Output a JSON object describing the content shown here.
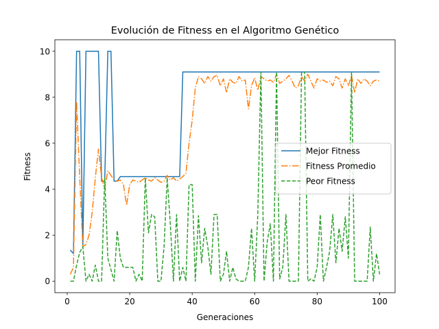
{
  "chart_data": {
    "type": "line",
    "title": "Evolución de Fitness en el Algoritmo Genético",
    "xlabel": "Generaciones",
    "ylabel": "Fitness",
    "xlim": [
      -3.95,
      104.95
    ],
    "ylim": [
      -0.5,
      10.5
    ],
    "xticks": [
      0,
      20,
      40,
      60,
      80,
      100
    ],
    "yticks": [
      0,
      2,
      4,
      6,
      8,
      10
    ],
    "grid": false,
    "legend_position": "center-right",
    "x": [
      1,
      2,
      3,
      4,
      5,
      6,
      7,
      8,
      9,
      10,
      11,
      12,
      13,
      14,
      15,
      16,
      17,
      18,
      19,
      20,
      21,
      22,
      23,
      24,
      25,
      26,
      27,
      28,
      29,
      30,
      31,
      32,
      33,
      34,
      35,
      36,
      37,
      38,
      39,
      40,
      41,
      42,
      43,
      44,
      45,
      46,
      47,
      48,
      49,
      50,
      51,
      52,
      53,
      54,
      55,
      56,
      57,
      58,
      59,
      60,
      61,
      62,
      63,
      64,
      65,
      66,
      67,
      68,
      69,
      70,
      71,
      72,
      73,
      74,
      75,
      76,
      77,
      78,
      79,
      80,
      81,
      82,
      83,
      84,
      85,
      86,
      87,
      88,
      89,
      90,
      91,
      92,
      93,
      94,
      95,
      96,
      97,
      98,
      99,
      100
    ],
    "series": [
      {
        "name": "Mejor Fitness",
        "color": "#1f77b4",
        "dash": "solid",
        "values": [
          1.35,
          1.2,
          10,
          10,
          1.5,
          10,
          10,
          10,
          10,
          10,
          4.35,
          4.35,
          10,
          10,
          4.35,
          4.35,
          4.55,
          4.55,
          4.55,
          4.55,
          4.55,
          4.55,
          4.55,
          4.55,
          4.55,
          4.55,
          4.55,
          4.55,
          4.55,
          4.55,
          4.55,
          4.55,
          4.55,
          4.55,
          4.55,
          4.55,
          9.1,
          9.1,
          9.1,
          9.1,
          9.1,
          9.1,
          9.1,
          9.1,
          9.1,
          9.1,
          9.1,
          9.1,
          9.1,
          9.1,
          9.1,
          9.1,
          9.1,
          9.1,
          9.1,
          9.1,
          9.1,
          9.1,
          9.1,
          9.1,
          9.1,
          9.1,
          9.1,
          9.1,
          9.1,
          9.1,
          9.1,
          9.1,
          9.1,
          9.1,
          9.1,
          9.1,
          9.1,
          9.1,
          9.1,
          9.1,
          9.1,
          9.1,
          9.1,
          9.1,
          9.1,
          9.1,
          9.1,
          9.1,
          9.1,
          9.1,
          9.1,
          9.1,
          9.1,
          9.1,
          9.1,
          9.1,
          9.1,
          9.1,
          9.1,
          9.1,
          9.1,
          9.1,
          9.1,
          9.1
        ]
      },
      {
        "name": "Fitness Promedio",
        "color": "#ff7f0e",
        "dash": "dashdot",
        "values": [
          0.3,
          0.6,
          7.8,
          4.5,
          1.5,
          1.6,
          2,
          3,
          4.5,
          5.75,
          4.5,
          4,
          4.8,
          4.6,
          4.4,
          4.35,
          4.4,
          4.2,
          3.3,
          4.2,
          4.4,
          4.35,
          4.3,
          4.4,
          4.5,
          4.4,
          4.35,
          4.5,
          4.4,
          4.3,
          4.35,
          4.6,
          4.4,
          4.5,
          4.35,
          4.45,
          4.55,
          4.7,
          6,
          7,
          8.4,
          8.9,
          8.8,
          8.6,
          8.9,
          8.7,
          8.9,
          8.95,
          8.5,
          8.8,
          8.2,
          8.8,
          8.65,
          8.6,
          8.9,
          8.7,
          8.75,
          7.5,
          8.5,
          8.85,
          8.3,
          8.9,
          8.8,
          8.7,
          8.75,
          8.65,
          9,
          8.6,
          8.7,
          8.8,
          8.95,
          8.7,
          8.4,
          8.5,
          8.9,
          8.7,
          9,
          8.7,
          8.4,
          8.8,
          8.7,
          8.75,
          8.65,
          8.7,
          8.5,
          8.9,
          8.8,
          8.4,
          8.8,
          8.5,
          8.95,
          8.2,
          8.8,
          8.6,
          8.8,
          8.7,
          8.5,
          8.7,
          8.75,
          8.7
        ]
      },
      {
        "name": "Peor Fitness",
        "color": "#2ca02c",
        "dash": "dashed",
        "values": [
          0,
          0,
          0.7,
          1.25,
          1.5,
          0,
          0.3,
          0,
          0.7,
          0,
          0,
          4.5,
          1,
          0.5,
          0,
          2.2,
          1,
          0.6,
          0.6,
          0.6,
          0.6,
          0,
          0.3,
          0,
          4.5,
          2.1,
          2.9,
          2.8,
          0,
          0,
          1.5,
          4.5,
          2.5,
          0,
          2.9,
          0,
          0.6,
          0,
          4.2,
          4.2,
          0,
          2.85,
          0.8,
          2.3,
          1.5,
          0.3,
          2.9,
          2.9,
          0,
          0.3,
          1.3,
          0,
          0.6,
          0.1,
          0,
          0,
          0,
          0.6,
          2.3,
          0,
          2.9,
          9.1,
          0,
          1.7,
          2.5,
          0,
          9.1,
          0.1,
          0.6,
          2.9,
          0,
          0,
          0,
          0,
          9.1,
          9.1,
          0,
          0.1,
          0,
          0.6,
          2.9,
          0,
          0.6,
          1.3,
          2.9,
          0.8,
          2.3,
          1.3,
          2.8,
          1,
          9.1,
          0,
          0,
          0,
          0,
          0,
          2.35,
          0,
          1.2,
          0.3
        ]
      }
    ]
  }
}
